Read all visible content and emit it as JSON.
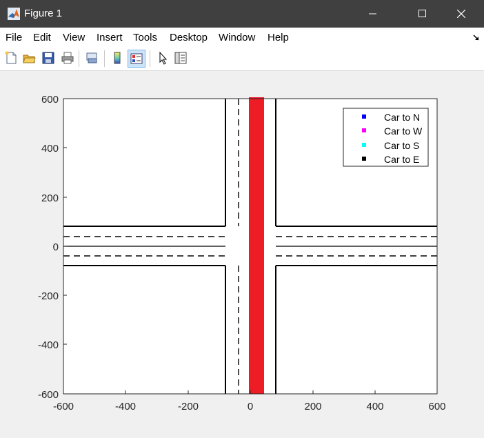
{
  "window": {
    "title": "Figure 1",
    "minimize_icon": "minimize-icon",
    "maximize_icon": "maximize-icon",
    "close_icon": "close-icon"
  },
  "menubar": {
    "items": [
      "File",
      "Edit",
      "View",
      "Insert",
      "Tools",
      "Desktop",
      "Window",
      "Help"
    ],
    "dock_icon": "dock-arrow-icon"
  },
  "toolbar": {
    "icons": [
      "new-figure-icon",
      "open-file-icon",
      "save-icon",
      "print-icon",
      "link-plot-icon",
      "insert-colorbar-icon",
      "insert-legend-icon",
      "edit-plot-icon",
      "property-inspector-icon"
    ]
  },
  "plot": {
    "x_ticks": [
      "-600",
      "-400",
      "-200",
      "0",
      "200",
      "400",
      "600"
    ],
    "y_ticks": [
      "600",
      "400",
      "200",
      "0",
      "-200",
      "-400",
      "-600"
    ],
    "legend": [
      {
        "label": "Car to N",
        "color": "#0000ff"
      },
      {
        "label": "Car to W",
        "color": "#ff00ff"
      },
      {
        "label": "Car to S",
        "color": "#00ffff"
      },
      {
        "label": "Car to E",
        "color": "#000000"
      }
    ],
    "vehicle_color": "#ee1c25",
    "road_line_color": "#000000"
  }
}
